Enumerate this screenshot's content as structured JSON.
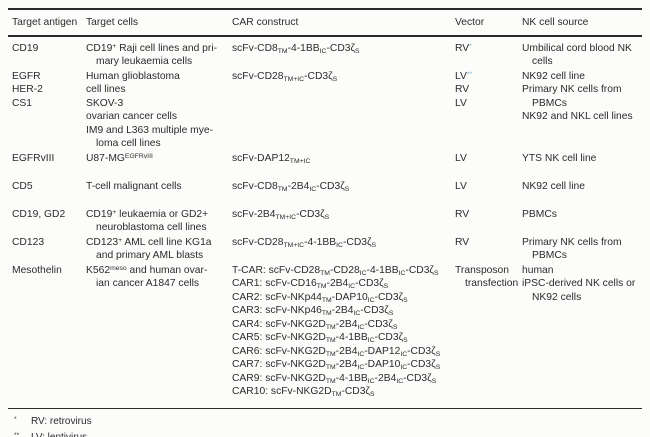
{
  "colors": {
    "accent": "#74afc4",
    "text": "#2b2b2b",
    "rule": "#2a2a2a"
  },
  "table": {
    "header": [
      "Target antigen",
      "Target cells",
      "CAR construct",
      "Vector",
      "NK cell source"
    ],
    "rows": [
      {
        "antigen": [
          "CD19"
        ],
        "cells": [
          "CD19^+^ Raji cell lines and pri-",
          "»mary leukaemia cells"
        ],
        "car": [
          "scFv-CD8~TM~-4-1BB~IC~-CD3ζ~S~"
        ],
        "vector": [
          "RV^*^"
        ],
        "nk": [
          "Umbilical cord blood NK",
          "»cells"
        ]
      },
      {
        "antigen": [
          "EGFR",
          "HER-2",
          "CS1"
        ],
        "cells": [
          "Human glioblastoma",
          "cell lines",
          "SKOV-3",
          "ovarian cancer cells",
          "IM9 and L363 multiple mye-",
          "»loma cell lines"
        ],
        "car": [
          "scFv-CD28~TM+IC~-CD3ζ~S~"
        ],
        "vector": [
          "LV^**^",
          "RV",
          "LV"
        ],
        "nk": [
          "NK92 cell line",
          "Primary NK cells from",
          "»PBMCs",
          "NK92 and NKL cell lines"
        ]
      },
      {
        "antigen": [
          "EGFRvIII"
        ],
        "cells": [
          "U87-MG^EGFRvIII^"
        ],
        "car": [
          "scFv-DAP12~TM+IC~"
        ],
        "vector": [
          "LV"
        ],
        "nk": [
          "YTS NK cell line"
        ]
      },
      {
        "antigen": [
          "CD5"
        ],
        "cells": [
          "T-cell malignant cells"
        ],
        "car": [
          "scFv-CD8~TM~-2B4~IC~-CD3ζ~S~"
        ],
        "vector": [
          "LV"
        ],
        "nk": [
          "NK92 cell line"
        ]
      },
      {
        "antigen": [
          "CD19, GD2"
        ],
        "cells": [
          "CD19^+^ leukaemia or GD2+",
          "»neuroblastoma cell lines"
        ],
        "car": [
          "scFv-2B4~TM+IC~-CD3ζ~S~"
        ],
        "vector": [
          "RV"
        ],
        "nk": [
          "PBMCs"
        ]
      },
      {
        "antigen": [
          "CD123"
        ],
        "cells": [
          "CD123^+^ AML cell line KG1a",
          "»and primary AML blasts"
        ],
        "car": [
          "scFv-CD28~TM+IC~-4-1BB~IC~-CD3ζ~S~"
        ],
        "vector": [
          "RV"
        ],
        "nk": [
          "Primary NK cells from",
          "»PBMCs"
        ]
      },
      {
        "antigen": [
          "Mesothelin"
        ],
        "cells": [
          "K562^meso^ and human ovar-",
          "»ian cancer A1847 cells"
        ],
        "car": [
          "T-CAR: scFv-CD28~TM~-CD28~IC~-4-1BB~IC~-CD3ζ~S~",
          "CAR1: scFv-CD16~TM~-2B4~IC~-CD3ζ~S~",
          "CAR2: scFv-NKp44~TM~-DAP10~IC~-CD3ζ~S~",
          "CAR3: scFv-NKp46~TM~-2B4~IC~-CD3ζ~S~",
          "CAR4: scFv-NKG2D~TM~-2B4~IC~-CD3ζ~S~",
          "CAR5: scFv-NKG2D~TM~-4-1BB~IC~-CD3ζ~S~",
          "CAR6: scFv-NKG2D~TM~-2B4~IC~-DAP12~IC~-CD3ζ~S~",
          "CAR7: scFv-NKG2D~TM~-2B4~IC~-DAP10~IC~-CD3ζ~S~",
          "CAR9: scFv-NKG2D~TM~-4-1BB~IC~-2B4~IC~-CD3ζ~S~",
          "CAR10: scFv-NKG2D~TM~-CD3ζ~S~"
        ],
        "vector": [
          "Transposon",
          "»transfection"
        ],
        "nk": [
          "human",
          "iPSC-derived NK cells or",
          "»NK92 cells"
        ]
      }
    ]
  },
  "footnotes": [
    {
      "marker": "*",
      "text": "RV: retrovirus"
    },
    {
      "marker": "**",
      "text": "LV: lentivirus"
    }
  ]
}
